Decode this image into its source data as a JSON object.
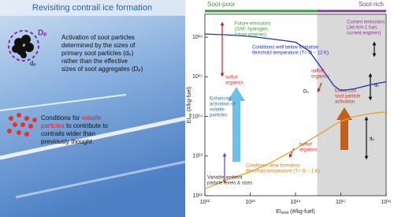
{
  "left_panel": {
    "title": "Revisiting contrail ice formation",
    "soot_labels": {
      "aggregate": "Dₚ",
      "primary": "dₚ"
    },
    "soot_text": [
      "Activation of soot particles",
      "determined by the sizes of",
      "primary soot particles (dₚ)",
      "rather than the effective",
      "sizes of soot aggregates (Dₚ)"
    ],
    "volatile_text": [
      [
        {
          "text": "Conditions for "
        },
        {
          "text": "volatile",
          "color": "#e02020"
        }
      ],
      [
        {
          "text": "particles",
          "color": "#e02020"
        },
        {
          "text": " to contribute to"
        }
      ],
      [
        {
          "text": "contrails wider than"
        }
      ],
      [
        {
          "text": "previously thought"
        }
      ]
    ]
  },
  "chart_data": {
    "type": "line",
    "xscale": "log",
    "yscale": "log",
    "xlim": [
      1000000000000.0,
      1e+16
    ],
    "ylim": [
      1000000000000.0,
      3.8e+16
    ],
    "xticks": [
      {
        "value": 1000000000000.0,
        "label": "10¹²"
      },
      {
        "value": 10000000000000.0,
        "label": "10¹³"
      },
      {
        "value": 100000000000000.0,
        "label": "10¹⁴"
      },
      {
        "value": 1000000000000000.0,
        "label": "10¹⁵"
      },
      {
        "value": 1e+16,
        "label": "10¹⁶"
      }
    ],
    "yticks": [
      {
        "value": 1000000000000.0,
        "label": "10¹²"
      },
      {
        "value": 10000000000000.0,
        "label": "10¹³"
      },
      {
        "value": 100000000000000.0,
        "label": "10¹⁴"
      },
      {
        "value": 1000000000000000.0,
        "label": "10¹⁵"
      },
      {
        "value": 1e+16,
        "label": "10¹⁶"
      }
    ],
    "xlabel": {
      "main": "EI",
      "sub": "soot",
      "unit": " (#/kg-fuel)"
    },
    "ylabel": {
      "main": "EI",
      "sub": "ice",
      "unit": " (#/kg-fuel)"
    },
    "shaded_xrange": [
      300000000000000.0,
      1e+16
    ],
    "regions": [
      {
        "label": "Soot-poor",
        "color": "#3a9a3a"
      },
      {
        "label": "Soot-rich",
        "color": "#8a3a9a"
      }
    ],
    "x": [
      1000000000000.0,
      3000000000000.0,
      10000000000000.0,
      30000000000000.0,
      100000000000000.0,
      200000000000000.0,
      400000000000000.0,
      700000000000000.0,
      1000000000000000.0,
      2000000000000000.0,
      5000000000000000.0,
      1e+16
    ],
    "series": [
      {
        "color": "#1f2fc8",
        "values": [
          1.2e+16,
          1.15e+16,
          1.05e+16,
          9000000000000000.0,
          7500000000000000.0,
          4500000000000000.0,
          1500000000000000.0,
          600000000000000.0,
          450000000000000.0,
          500000000000000.0,
          650000000000000.0,
          750000000000000.0
        ]
      },
      {
        "color": "#e8a030",
        "values": [
          1500000000000.0,
          2500000000000.0,
          4000000000000.0,
          7000000000000.0,
          15000000000000.0,
          25000000000000.0,
          40000000000000.0,
          60000000000000.0,
          75000000000000.0,
          100000000000000.0,
          120000000000000.0,
          130000000000000.0
        ]
      }
    ],
    "annotations": [
      {
        "lines": [
          "Future emissions",
          "(SAF, hydrogen,",
          "future engines)"
        ],
        "color": "#3a9a3a"
      },
      {
        "lines": [
          "Current emissions",
          "(Jet A/A-1 fuel,",
          "current engines)"
        ],
        "color": "#8a3a9a"
      },
      {
        "lines": [
          "Conditions well below formation",
          "threshold temperature (T= Θ − 12 K)"
        ],
        "color": "#1f2fc8"
      },
      {
        "lines": [
          "sulfur/",
          "organics"
        ],
        "color": "#e02020"
      },
      {
        "lines": [
          "sulfur/",
          "organics"
        ],
        "color": "#e02020"
      },
      {
        "lines": [
          "Enhanced",
          "activation of",
          "volatile",
          "particles"
        ],
        "color": "#3a6f9a"
      },
      {
        "lines": [
          "Enhanced",
          "soot particle",
          "activation"
        ],
        "color": "#c0392b"
      },
      {
        "lines": [
          "sulfur/",
          "organics"
        ],
        "color": "#e02020"
      },
      {
        "lines": [
          "Conditions near formation",
          "threshold temperature (T= Θ − 1 K)"
        ],
        "color": "#d08010"
      },
      {
        "lines": [
          "Variable ambient",
          "particle levels & sizes"
        ],
        "color": "#333333"
      },
      {
        "lines": [
          "dₚ"
        ],
        "color": "#000000"
      },
      {
        "lines": [
          "Dₚ"
        ],
        "color": "#000000"
      },
      {
        "lines": [
          "dₚ"
        ],
        "color": "#000000"
      }
    ]
  }
}
